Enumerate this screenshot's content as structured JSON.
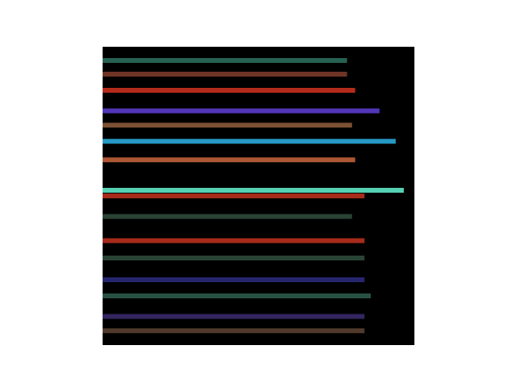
{
  "chart_data": {
    "type": "spectrogram",
    "xlim": [
      0,
      500
    ],
    "xticks": [
      0,
      100,
      200,
      300,
      400,
      500
    ],
    "ylim": [
      0,
      480
    ],
    "yticks": [
      0,
      100,
      200,
      300,
      400
    ],
    "tick_labels": false,
    "bands": [
      {
        "y": 22,
        "start": 0,
        "end": 392,
        "color": "#2a6b5a"
      },
      {
        "y": 44,
        "start": 0,
        "end": 392,
        "color": "#7a3a2a"
      },
      {
        "y": 70,
        "start": 0,
        "end": 405,
        "color": "#c8301e"
      },
      {
        "y": 103,
        "start": 0,
        "end": 444,
        "color": "#5a3ccc"
      },
      {
        "y": 126,
        "start": 0,
        "end": 400,
        "color": "#8a5a3a"
      },
      {
        "y": 152,
        "start": 0,
        "end": 470,
        "color": "#2aa8d8"
      },
      {
        "y": 182,
        "start": 0,
        "end": 405,
        "color": "#c0603a"
      },
      {
        "y": 231,
        "start": 0,
        "end": 483,
        "color": "#5fe8c8"
      },
      {
        "y": 240,
        "start": 0,
        "end": 420,
        "color": "#b8301e"
      },
      {
        "y": 273,
        "start": 0,
        "end": 400,
        "color": "#2e4a3a"
      },
      {
        "y": 312,
        "start": 0,
        "end": 420,
        "color": "#b8301e"
      },
      {
        "y": 340,
        "start": 0,
        "end": 420,
        "color": "#2e4a3a"
      },
      {
        "y": 375,
        "start": 0,
        "end": 420,
        "color": "#2a2a7a"
      },
      {
        "y": 401,
        "start": 0,
        "end": 430,
        "color": "#2e5a4a"
      },
      {
        "y": 434,
        "start": 0,
        "end": 420,
        "color": "#3a2a6a"
      },
      {
        "y": 457,
        "start": 0,
        "end": 420,
        "color": "#5a4030"
      }
    ]
  }
}
